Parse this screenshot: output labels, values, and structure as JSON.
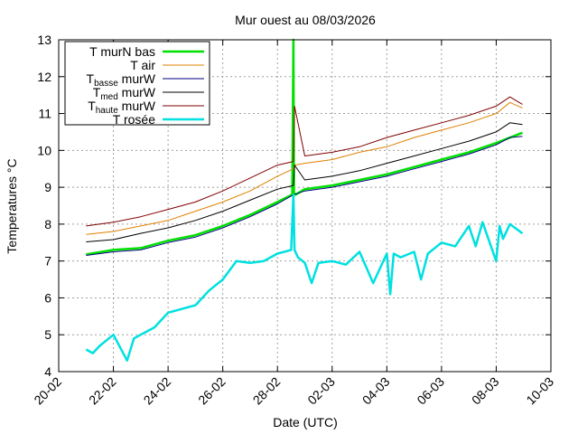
{
  "chart_data": {
    "type": "line",
    "title": "Mur ouest au 08/03/2026",
    "xlabel": "Date (UTC)",
    "ylabel": "Temperatures °C",
    "xlim": [
      "2026-02-20",
      "2026-03-10"
    ],
    "ylim": [
      4,
      13
    ],
    "x_ticks": [
      "20-02",
      "22-02",
      "24-02",
      "26-02",
      "28-02",
      "02-03",
      "04-03",
      "06-03",
      "08-03",
      "10-03"
    ],
    "y_ticks": [
      "4",
      "5",
      "6",
      "7",
      "8",
      "9",
      "10",
      "11",
      "12",
      "13"
    ],
    "grid": true,
    "legend_position": "top-left",
    "x_unit": "date",
    "series": [
      {
        "name": "T murN bas",
        "color": "#00e000",
        "width": 2.5,
        "x": [
          "2026-02-21",
          "2026-02-22",
          "2026-02-23",
          "2026-02-24",
          "2026-02-25",
          "2026-02-26",
          "2026-02-27",
          "2026-02-28",
          "2026-02-28T13:00",
          "2026-02-28T14:00",
          "2026-02-28T14:30",
          "2026-02-28T16:00",
          "2026-03-01",
          "2026-03-02",
          "2026-03-03",
          "2026-03-04",
          "2026-03-05",
          "2026-03-06",
          "2026-03-07",
          "2026-03-08",
          "2026-03-08T12:00",
          "2026-03-08T23:00"
        ],
        "y": [
          7.18,
          7.3,
          7.35,
          7.55,
          7.7,
          7.95,
          8.25,
          8.6,
          8.8,
          13.0,
          8.85,
          8.8,
          8.95,
          9.05,
          9.2,
          9.35,
          9.55,
          9.75,
          9.95,
          10.2,
          10.35,
          10.48
        ]
      },
      {
        "name": "T air",
        "color": "#e08000",
        "width": 1,
        "x": [
          "2026-02-21",
          "2026-02-22",
          "2026-02-23",
          "2026-02-24",
          "2026-02-25",
          "2026-02-26",
          "2026-02-27",
          "2026-02-28",
          "2026-02-28T14:00",
          "2026-02-28T15:00",
          "2026-03-01",
          "2026-03-02",
          "2026-03-03",
          "2026-03-04",
          "2026-03-05",
          "2026-03-06",
          "2026-03-07",
          "2026-03-08",
          "2026-03-08T12:00",
          "2026-03-08T23:00"
        ],
        "y": [
          7.72,
          7.8,
          7.95,
          8.1,
          8.35,
          8.6,
          8.9,
          9.3,
          9.5,
          9.6,
          9.65,
          9.75,
          9.95,
          10.1,
          10.35,
          10.55,
          10.75,
          11.0,
          11.3,
          11.15
        ]
      },
      {
        "name": "T_basse murW",
        "color": "#000080",
        "width": 1,
        "x": [
          "2026-02-21",
          "2026-02-22",
          "2026-02-23",
          "2026-02-24",
          "2026-02-25",
          "2026-02-26",
          "2026-02-27",
          "2026-02-28",
          "2026-02-28T14:00",
          "2026-03-01",
          "2026-03-02",
          "2026-03-03",
          "2026-03-04",
          "2026-03-05",
          "2026-03-06",
          "2026-03-07",
          "2026-03-08",
          "2026-03-08T12:00",
          "2026-03-08T23:00"
        ],
        "y": [
          7.15,
          7.25,
          7.3,
          7.5,
          7.65,
          7.9,
          8.2,
          8.55,
          8.8,
          8.9,
          9.0,
          9.15,
          9.3,
          9.5,
          9.7,
          9.9,
          10.15,
          10.35,
          10.38
        ]
      },
      {
        "name": "T_med murW",
        "color": "#000000",
        "width": 1,
        "x": [
          "2026-02-21",
          "2026-02-22",
          "2026-02-23",
          "2026-02-24",
          "2026-02-25",
          "2026-02-26",
          "2026-02-27",
          "2026-02-28",
          "2026-02-28T14:00",
          "2026-02-28T15:00",
          "2026-03-01",
          "2026-03-02",
          "2026-03-03",
          "2026-03-04",
          "2026-03-05",
          "2026-03-06",
          "2026-03-07",
          "2026-03-08",
          "2026-03-08T12:00",
          "2026-03-08T23:00"
        ],
        "y": [
          7.52,
          7.58,
          7.75,
          7.9,
          8.1,
          8.35,
          8.65,
          8.95,
          9.05,
          9.6,
          9.2,
          9.3,
          9.45,
          9.65,
          9.85,
          10.05,
          10.25,
          10.5,
          10.75,
          10.7
        ]
      },
      {
        "name": "T_haute murW",
        "color": "#800000",
        "width": 1,
        "x": [
          "2026-02-21",
          "2026-02-22",
          "2026-02-23",
          "2026-02-24",
          "2026-02-25",
          "2026-02-26",
          "2026-02-27",
          "2026-02-28",
          "2026-02-28T14:00",
          "2026-02-28T15:00",
          "2026-03-01",
          "2026-03-02",
          "2026-03-03",
          "2026-03-04",
          "2026-03-05",
          "2026-03-06",
          "2026-03-07",
          "2026-03-08",
          "2026-03-08T12:00",
          "2026-03-08T23:00"
        ],
        "y": [
          7.95,
          8.05,
          8.2,
          8.4,
          8.6,
          8.9,
          9.25,
          9.6,
          9.7,
          11.2,
          9.85,
          9.95,
          10.1,
          10.35,
          10.55,
          10.75,
          10.95,
          11.2,
          11.45,
          11.25
        ]
      },
      {
        "name": "T rosée",
        "color": "#00e0e0",
        "width": 2.5,
        "x": [
          "2026-02-21",
          "2026-02-21T06:00",
          "2026-02-21T12:00",
          "2026-02-22",
          "2026-02-22T12:00",
          "2026-02-22T18:00",
          "2026-02-23",
          "2026-02-23T12:00",
          "2026-02-24",
          "2026-02-24T12:00",
          "2026-02-25",
          "2026-02-25T12:00",
          "2026-02-26",
          "2026-02-26T12:00",
          "2026-02-27",
          "2026-02-27T12:00",
          "2026-02-28",
          "2026-02-28T12:00",
          "2026-02-28T14:00",
          "2026-02-28T15:00",
          "2026-02-28T18:00",
          "2026-03-01",
          "2026-03-01T06:00",
          "2026-03-01T12:00",
          "2026-03-02",
          "2026-03-02T12:00",
          "2026-03-03",
          "2026-03-03T12:00",
          "2026-03-04",
          "2026-03-04T03:00",
          "2026-03-04T06:00",
          "2026-03-04T12:00",
          "2026-03-05",
          "2026-03-05T06:00",
          "2026-03-05T12:00",
          "2026-03-06",
          "2026-03-06T12:00",
          "2026-03-07",
          "2026-03-07T06:00",
          "2026-03-07T12:00",
          "2026-03-08",
          "2026-03-08T03:00",
          "2026-03-08T06:00",
          "2026-03-08T12:00",
          "2026-03-08T23:00"
        ],
        "y": [
          4.6,
          4.5,
          4.7,
          5.0,
          4.3,
          4.9,
          5.0,
          5.2,
          5.6,
          5.7,
          5.8,
          6.2,
          6.5,
          7.0,
          6.95,
          7.0,
          7.2,
          7.3,
          8.8,
          7.3,
          7.1,
          6.95,
          6.4,
          6.95,
          7.0,
          6.9,
          7.25,
          6.4,
          7.2,
          6.1,
          7.2,
          7.1,
          7.25,
          6.5,
          7.2,
          7.5,
          7.4,
          7.95,
          7.4,
          8.05,
          7.0,
          7.95,
          7.6,
          8.0,
          7.75
        ]
      }
    ]
  }
}
